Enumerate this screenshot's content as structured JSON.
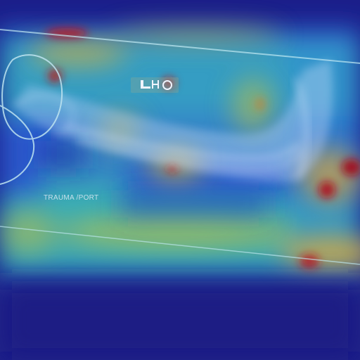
{
  "image": {
    "text_label": "TRAUMA /PORT",
    "colors": {
      "background": "#1a1d86",
      "hot": "#c1121f",
      "warm": "#f0b92c",
      "mid": "#36c0b5",
      "cool": "#2a6ee0"
    }
  }
}
